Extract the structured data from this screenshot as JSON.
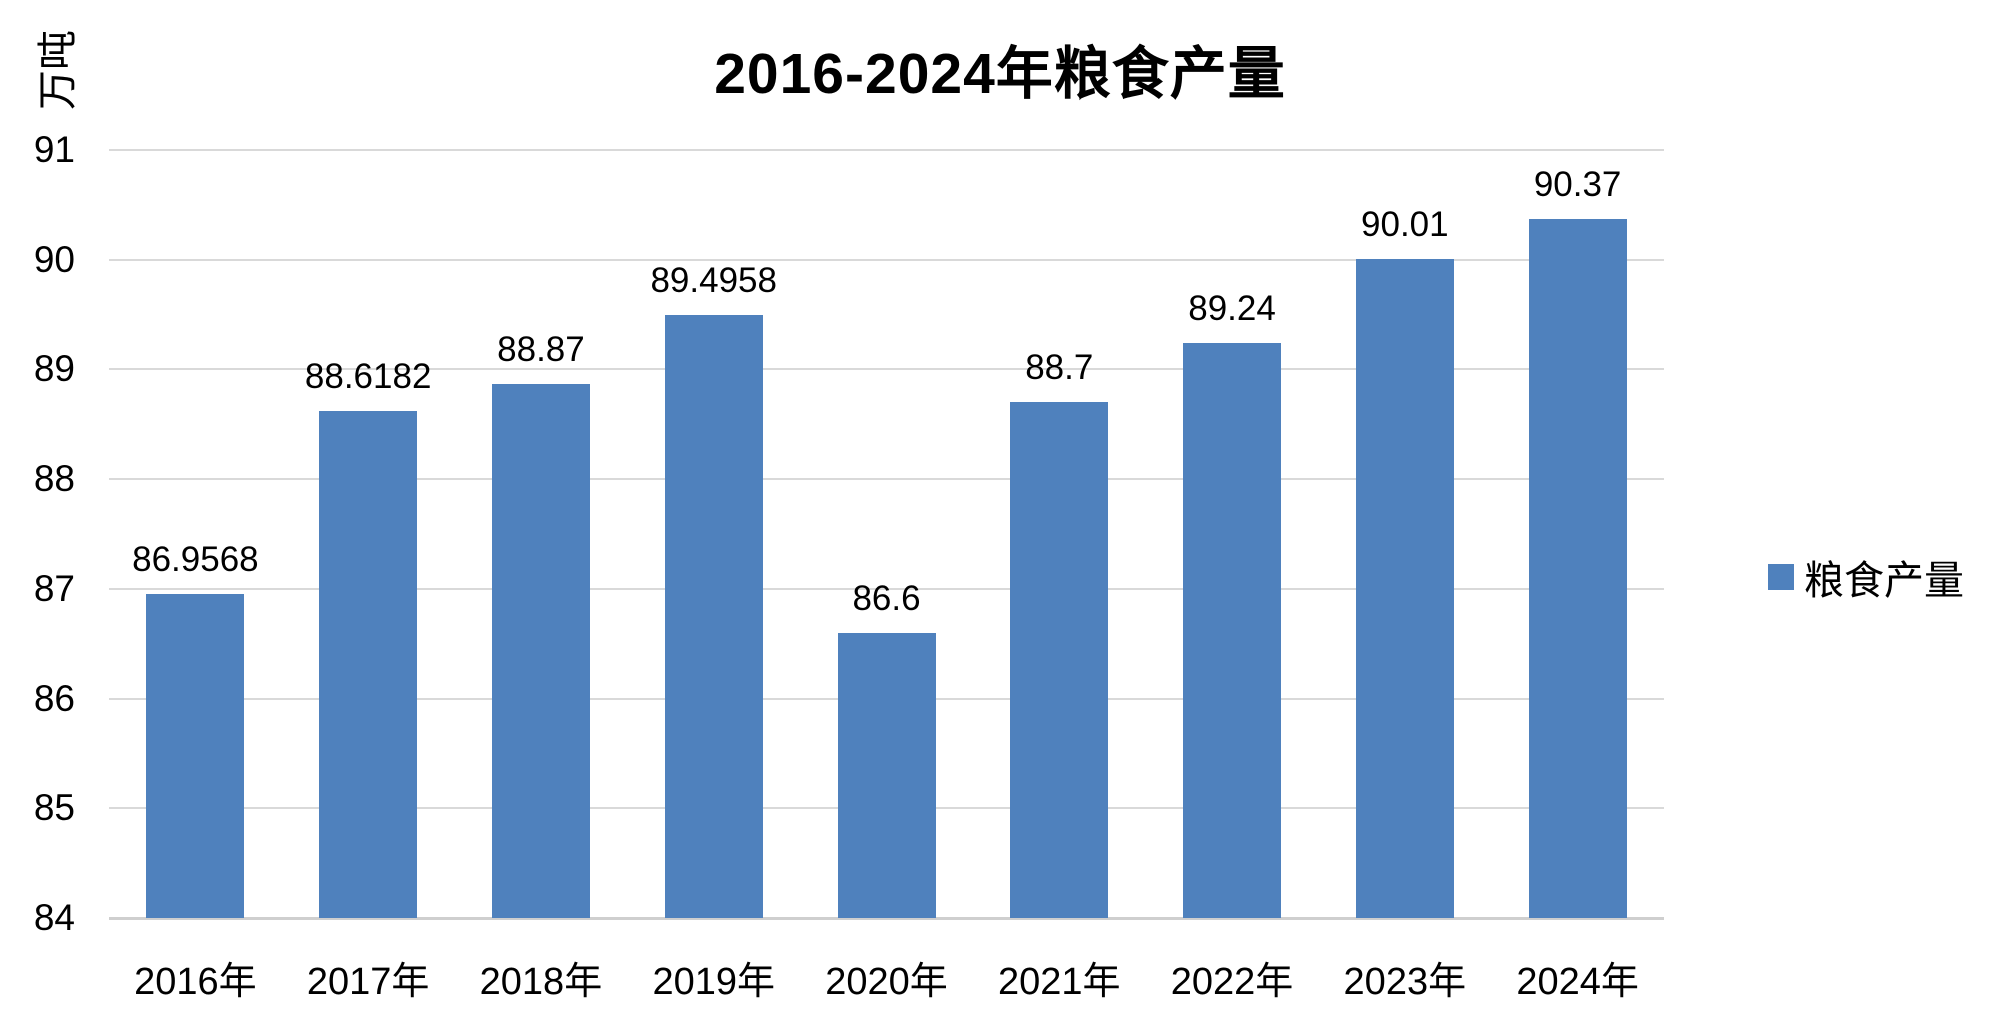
{
  "chart_data": {
    "type": "bar",
    "title": "2016-2024年粮食产量",
    "unit_label": "万吨",
    "categories": [
      "2016年",
      "2017年",
      "2018年",
      "2019年",
      "2020年",
      "2021年",
      "2022年",
      "2023年",
      "2024年"
    ],
    "series": [
      {
        "name": "粮食产量",
        "values": [
          86.9568,
          88.6182,
          88.87,
          89.4958,
          86.6,
          88.7,
          89.24,
          90.01,
          90.37
        ],
        "labels": [
          "86.9568",
          "88.6182",
          "88.87",
          "89.4958",
          "86.6",
          "88.7",
          "89.24",
          "90.01",
          "90.37"
        ]
      }
    ],
    "ylim": [
      84,
      91
    ],
    "yticks": [
      84,
      85,
      86,
      87,
      88,
      89,
      90,
      91
    ],
    "ytick_labels": [
      "84",
      "85",
      "86",
      "87",
      "88",
      "89",
      "90",
      "91"
    ],
    "grid": true,
    "legend_position": "right",
    "bar_color": "#4f81bd",
    "gridline_color": "#d9d9d9",
    "text_color": "#000000"
  }
}
